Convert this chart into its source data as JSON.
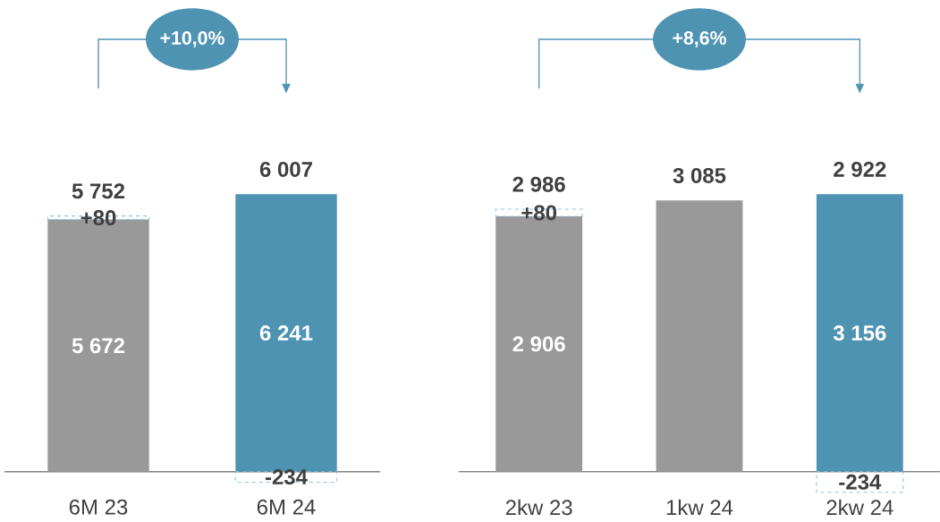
{
  "chart_data": [
    {
      "type": "bar",
      "stacked": true,
      "categories": [
        "6M 23",
        "6M 24"
      ],
      "annotations": [
        "+10,0%"
      ],
      "totals": [
        "5 752",
        "6 007"
      ],
      "series": [
        {
          "values": [
            5672,
            6241
          ],
          "colors": [
            "#999999",
            "#4f93b2"
          ],
          "value_labels": [
            "5 672",
            "6 241"
          ]
        },
        {
          "values": [
            80,
            -234
          ],
          "color": "#8fc3d8",
          "line_style": "dashed",
          "value_labels": [
            "+80",
            "-234"
          ]
        }
      ]
    },
    {
      "type": "bar",
      "stacked": true,
      "categories": [
        "2kw 23",
        "1kw 24",
        "2kw 24"
      ],
      "annotations": [
        "+8,6%"
      ],
      "totals": [
        "2 986",
        "3 085",
        "2 922"
      ],
      "series": [
        {
          "values": [
            2906,
            3085,
            3156
          ],
          "colors": [
            "#999999",
            "#999999",
            "#4f93b2"
          ],
          "value_labels": [
            "2 906",
            null,
            "3 156"
          ]
        },
        {
          "values": [
            80,
            null,
            -234
          ],
          "color": "#8fc3d8",
          "line_style": "dashed",
          "value_labels": [
            "+80",
            null,
            "-234"
          ]
        }
      ]
    }
  ]
}
